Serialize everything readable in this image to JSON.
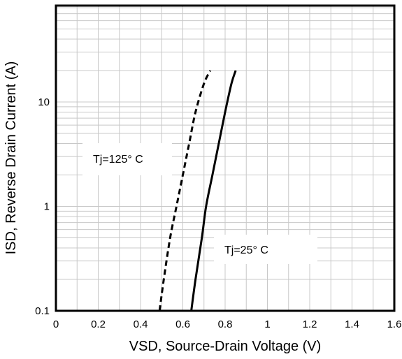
{
  "chart_data": {
    "type": "line",
    "title": "",
    "xlabel": "VSD, Source-Drain Voltage (V)",
    "ylabel": "ISD, Reverse Drain Current (A)",
    "xlim": [
      0,
      1.6
    ],
    "ylim": [
      0.1,
      50
    ],
    "yscale": "log",
    "grid": true,
    "x_ticks": [
      {
        "value": 0,
        "label": "0"
      },
      {
        "value": 0.2,
        "label": "0.2"
      },
      {
        "value": 0.4,
        "label": "0.4"
      },
      {
        "value": 0.6,
        "label": "0.6"
      },
      {
        "value": 0.8,
        "label": "0.8"
      },
      {
        "value": 1.0,
        "label": "1"
      },
      {
        "value": 1.2,
        "label": "1.2"
      },
      {
        "value": 1.4,
        "label": "1.4"
      },
      {
        "value": 1.6,
        "label": "1.6"
      }
    ],
    "y_ticks": [
      {
        "value": 0.1,
        "label": "0.1"
      },
      {
        "value": 1,
        "label": "1"
      },
      {
        "value": 10,
        "label": "10"
      }
    ],
    "series": [
      {
        "name": "Tj=125° C",
        "style": "dashed",
        "color": "#000000",
        "points": [
          {
            "x": 0.49,
            "y": 0.1
          },
          {
            "x": 0.51,
            "y": 0.2
          },
          {
            "x": 0.54,
            "y": 0.5
          },
          {
            "x": 0.57,
            "y": 1.0
          },
          {
            "x": 0.6,
            "y": 2.0
          },
          {
            "x": 0.63,
            "y": 4.0
          },
          {
            "x": 0.66,
            "y": 8.0
          },
          {
            "x": 0.7,
            "y": 15.0
          },
          {
            "x": 0.73,
            "y": 20.0
          }
        ]
      },
      {
        "name": "Tj=25° C",
        "style": "solid",
        "color": "#000000",
        "points": [
          {
            "x": 0.64,
            "y": 0.1
          },
          {
            "x": 0.66,
            "y": 0.2
          },
          {
            "x": 0.69,
            "y": 0.5
          },
          {
            "x": 0.71,
            "y": 1.0
          },
          {
            "x": 0.74,
            "y": 2.0
          },
          {
            "x": 0.77,
            "y": 4.0
          },
          {
            "x": 0.8,
            "y": 8.0
          },
          {
            "x": 0.83,
            "y": 15.0
          },
          {
            "x": 0.85,
            "y": 20.0
          }
        ]
      }
    ],
    "annotations": [
      {
        "series": 0,
        "text": "Tj=125° C",
        "position": "left of dashed curve, near 3 A"
      },
      {
        "series": 1,
        "text": "Tj=25° C",
        "position": "right of solid curve, near 0.25 A"
      }
    ]
  }
}
